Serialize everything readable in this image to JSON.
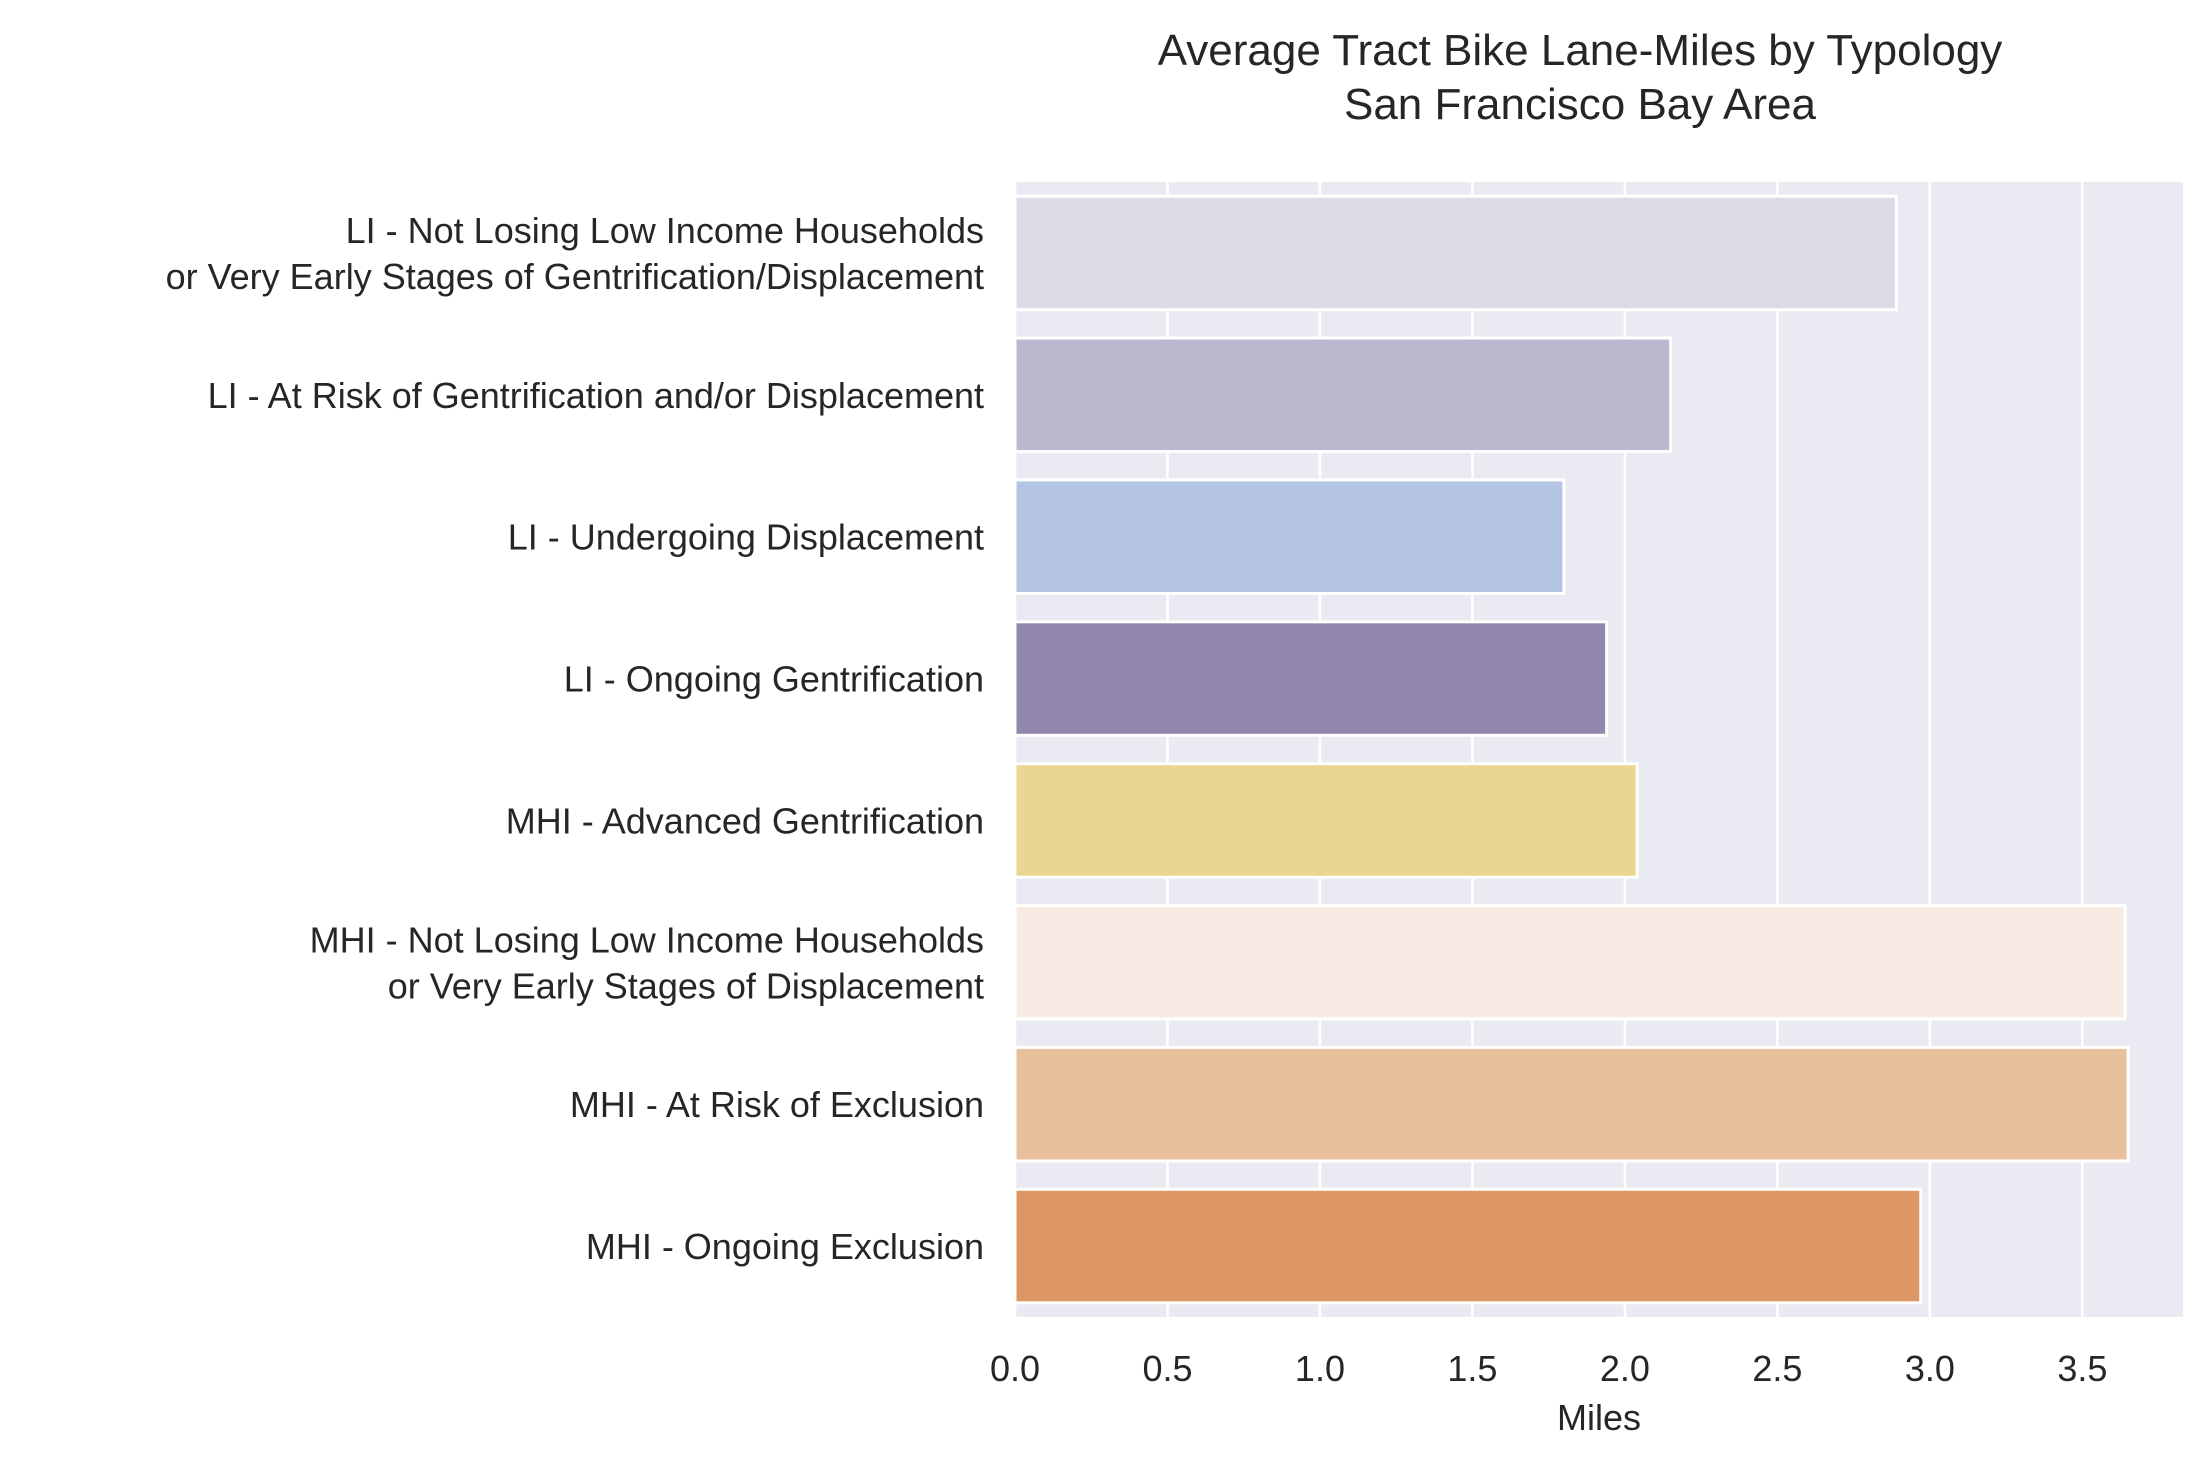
{
  "chart_data": {
    "type": "bar",
    "orientation": "horizontal",
    "title": [
      "Average Tract Bike Lane-Miles by Typology",
      "San Francisco Bay Area"
    ],
    "xlabel": "Miles",
    "ylabel": "",
    "xlim": [
      0,
      3.83
    ],
    "xticks": [
      "0.0",
      "0.5",
      "1.0",
      "1.5",
      "2.0",
      "2.5",
      "3.0",
      "3.5"
    ],
    "grid": true,
    "categories": [
      [
        "LI - Not Losing Low Income Households",
        "or Very Early Stages of Gentrification/Displacement"
      ],
      [
        "LI - At Risk of Gentrification and/or Displacement"
      ],
      [
        "LI - Undergoing Displacement"
      ],
      [
        "LI - Ongoing Gentrification"
      ],
      [
        "MHI - Advanced Gentrification"
      ],
      [
        "MHI - Not Losing Low Income Households",
        "or Very Early Stages of Displacement"
      ],
      [
        "MHI - At Risk of Exclusion"
      ],
      [
        "MHI - Ongoing Exclusion"
      ]
    ],
    "values": [
      2.89,
      2.15,
      1.8,
      1.94,
      2.04,
      3.64,
      3.65,
      2.97
    ],
    "colors": [
      "#dcdbe7",
      "#bab8cf",
      "#b4c4e3",
      "#9287ae",
      "#ead690",
      "#f8ebe3",
      "#e8c19c",
      "#dc9764"
    ],
    "background": "#eaeaf2"
  }
}
